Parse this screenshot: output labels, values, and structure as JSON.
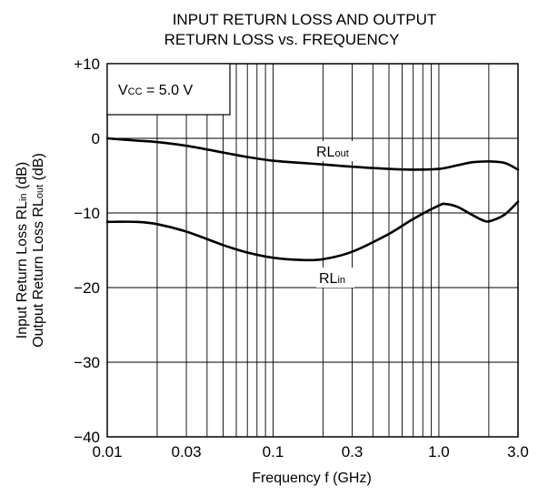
{
  "chart_data": {
    "type": "line",
    "title_line1": "INPUT  RETURN  LOSS  AND  OUTPUT",
    "title_line2": "RETURN  LOSS vs. FREQUENCY",
    "xlabel": "Frequency  f (GHz)",
    "ylabel_line1": {
      "main": "Input Return Loss  RL",
      "sub": "in",
      "tail": " (dB)"
    },
    "ylabel_line2": {
      "main": "Output Return Loss  RL",
      "sub": "out",
      "tail": " (dB)"
    },
    "x_scale": "log",
    "xlim": [
      0.01,
      3.0
    ],
    "ylim": [
      -40,
      10
    ],
    "x_ticks": [
      {
        "value": 0.01,
        "label": "0.01"
      },
      {
        "value": 0.03,
        "label": "0.03"
      },
      {
        "value": 0.1,
        "label": "0.1"
      },
      {
        "value": 0.3,
        "label": "0.3"
      },
      {
        "value": 1.0,
        "label": "1.0"
      },
      {
        "value": 3.0,
        "label": "3.0"
      }
    ],
    "y_ticks": [
      {
        "value": 10,
        "label": "+10"
      },
      {
        "value": 0,
        "label": "0"
      },
      {
        "value": -10,
        "label": "−10"
      },
      {
        "value": -20,
        "label": "−20"
      },
      {
        "value": -30,
        "label": "−30"
      },
      {
        "value": -40,
        "label": "−40"
      }
    ],
    "grid": true,
    "condition": {
      "main": "V",
      "sub": "CC",
      "tail": " = 5.0 V"
    },
    "series": [
      {
        "name": {
          "main": "RL",
          "sub": "out"
        },
        "x": [
          0.01,
          0.015,
          0.02,
          0.03,
          0.05,
          0.07,
          0.1,
          0.15,
          0.2,
          0.3,
          0.5,
          0.7,
          1.0,
          1.3,
          1.6,
          2.0,
          2.5,
          3.0
        ],
        "y": [
          0,
          -0.3,
          -0.5,
          -1.0,
          -1.9,
          -2.5,
          -3.0,
          -3.3,
          -3.5,
          -3.8,
          -4.1,
          -4.2,
          -4.1,
          -3.6,
          -3.2,
          -3.1,
          -3.3,
          -4.2
        ]
      },
      {
        "name": {
          "main": "RL",
          "sub": "in"
        },
        "x": [
          0.01,
          0.015,
          0.02,
          0.03,
          0.05,
          0.07,
          0.1,
          0.15,
          0.2,
          0.3,
          0.5,
          0.7,
          1.0,
          1.1,
          1.3,
          1.6,
          1.9,
          2.1,
          2.5,
          3.0
        ],
        "y": [
          -11.2,
          -11.2,
          -11.5,
          -12.5,
          -14.3,
          -15.3,
          -16.0,
          -16.3,
          -16.2,
          -15.2,
          -12.8,
          -10.8,
          -9.0,
          -8.8,
          -9.2,
          -10.3,
          -11.1,
          -11.0,
          -10.2,
          -8.5
        ]
      }
    ]
  }
}
